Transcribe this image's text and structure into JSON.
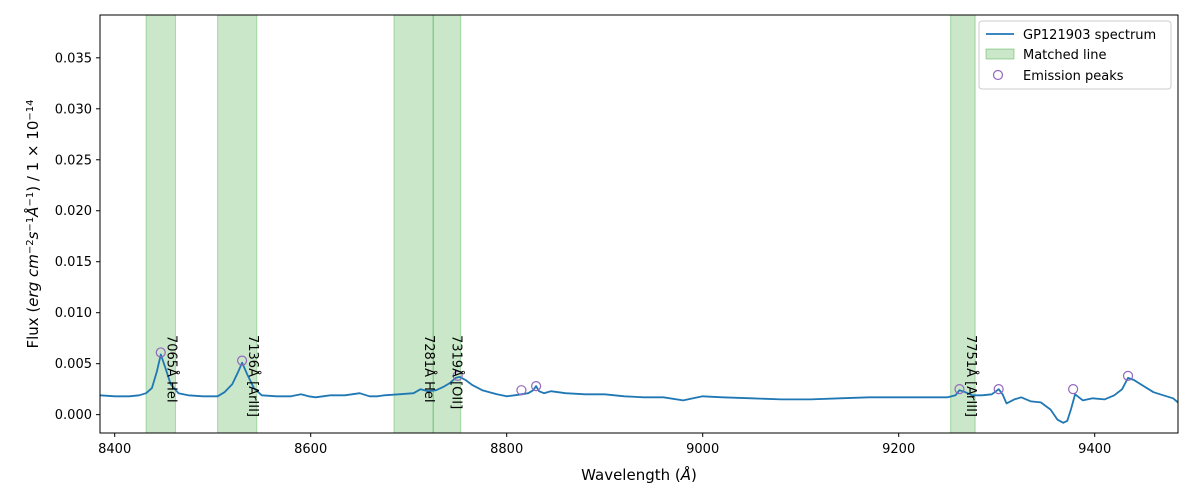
{
  "chart_data": {
    "type": "line",
    "xlabel_text": "Wavelength (",
    "xlabel_unit": "Å",
    "xlabel_close": ")",
    "ylabel_text": "Flux (",
    "ylabel_math": "erg cm",
    "ylabel_exp1": "−2",
    "ylabel_s": "s",
    "ylabel_exp2": "−1",
    "ylabel_A": "Å",
    "ylabel_exp3": "−1",
    "ylabel_rest": ") / 1 × 10",
    "ylabel_exp4": "−14",
    "xlim": [
      8385,
      9485
    ],
    "ylim": [
      -0.0018,
      0.0392
    ],
    "x_ticks": [
      8400,
      8600,
      8800,
      9000,
      9200,
      9400
    ],
    "y_ticks": [
      0.0,
      0.005,
      0.01,
      0.015,
      0.02,
      0.025,
      0.03,
      0.035
    ],
    "y_tick_labels": [
      "0.000",
      "0.005",
      "0.010",
      "0.015",
      "0.020",
      "0.025",
      "0.030",
      "0.035"
    ],
    "colors": {
      "spectrum": "#1f77b4",
      "band_fill": "#2ca02c",
      "peak_marker": "#9467bd"
    },
    "legend": {
      "placement": "top-right",
      "entries": [
        "GP121903 spectrum",
        "Matched line",
        "Emission peaks"
      ]
    },
    "matched_bands": [
      {
        "x0": 8432,
        "x1": 8462,
        "label": "7065Å HeI"
      },
      {
        "x0": 8505,
        "x1": 8545,
        "label": "7136Å [ArIII]"
      },
      {
        "x0": 8685,
        "x1": 8725,
        "label": "7281Å HeI"
      },
      {
        "x0": 8725,
        "x1": 8753,
        "label": "7319Å [OII]"
      },
      {
        "x0": 9253,
        "x1": 9278,
        "label": "7751Å [ArIII]"
      }
    ],
    "emission_peaks": [
      {
        "x": 8447,
        "y": 0.0061
      },
      {
        "x": 8530,
        "y": 0.0053
      },
      {
        "x": 8750,
        "y": 0.0038
      },
      {
        "x": 8815,
        "y": 0.0024
      },
      {
        "x": 8830,
        "y": 0.0028
      },
      {
        "x": 9262,
        "y": 0.0025
      },
      {
        "x": 9302,
        "y": 0.0025
      },
      {
        "x": 9378,
        "y": 0.0025
      },
      {
        "x": 9434,
        "y": 0.0038
      }
    ],
    "series": [
      {
        "name": "GP121903 spectrum",
        "x": [
          8385,
          8400,
          8415,
          8425,
          8432,
          8438,
          8443,
          8447,
          8452,
          8457,
          8465,
          8475,
          8490,
          8505,
          8512,
          8520,
          8526,
          8530,
          8535,
          8542,
          8550,
          8565,
          8580,
          8590,
          8598,
          8605,
          8620,
          8635,
          8650,
          8660,
          8668,
          8675,
          8690,
          8705,
          8712,
          8720,
          8728,
          8735,
          8742,
          8748,
          8752,
          8758,
          8765,
          8775,
          8790,
          8800,
          8808,
          8815,
          8822,
          8827,
          8830,
          8833,
          8838,
          8845,
          8860,
          8880,
          8900,
          8920,
          8940,
          8960,
          8980,
          9000,
          9020,
          9050,
          9080,
          9110,
          9140,
          9170,
          9200,
          9230,
          9250,
          9258,
          9262,
          9268,
          9275,
          9285,
          9295,
          9302,
          9306,
          9310,
          9318,
          9325,
          9335,
          9345,
          9355,
          9362,
          9368,
          9372,
          9376,
          9380,
          9388,
          9398,
          9410,
          9420,
          9428,
          9434,
          9440,
          9450,
          9460,
          9470,
          9480,
          9485
        ],
        "y": [
          0.0019,
          0.0018,
          0.0018,
          0.0019,
          0.0021,
          0.0026,
          0.0042,
          0.0059,
          0.0045,
          0.003,
          0.0021,
          0.0019,
          0.0018,
          0.0018,
          0.0022,
          0.003,
          0.0042,
          0.0051,
          0.004,
          0.0026,
          0.0019,
          0.0018,
          0.0018,
          0.002,
          0.0018,
          0.0017,
          0.0019,
          0.0019,
          0.0021,
          0.0018,
          0.0018,
          0.0019,
          0.002,
          0.0021,
          0.0025,
          0.0023,
          0.0024,
          0.0027,
          0.0031,
          0.0036,
          0.0037,
          0.0034,
          0.0029,
          0.0024,
          0.002,
          0.0018,
          0.0019,
          0.002,
          0.0021,
          0.0024,
          0.0028,
          0.0023,
          0.0021,
          0.0023,
          0.0021,
          0.002,
          0.002,
          0.0018,
          0.0017,
          0.0017,
          0.0014,
          0.0018,
          0.0017,
          0.0016,
          0.0015,
          0.0015,
          0.0016,
          0.0017,
          0.0017,
          0.0017,
          0.0017,
          0.0019,
          0.0024,
          0.0022,
          0.0019,
          0.0019,
          0.002,
          0.0025,
          0.002,
          0.0011,
          0.0015,
          0.0017,
          0.0013,
          0.0012,
          0.0005,
          -0.0005,
          -0.0008,
          -0.0006,
          0.0006,
          0.002,
          0.0014,
          0.0016,
          0.0015,
          0.0019,
          0.0025,
          0.0036,
          0.0034,
          0.0028,
          0.0022,
          0.0019,
          0.0016,
          0.0012
        ]
      }
    ]
  }
}
